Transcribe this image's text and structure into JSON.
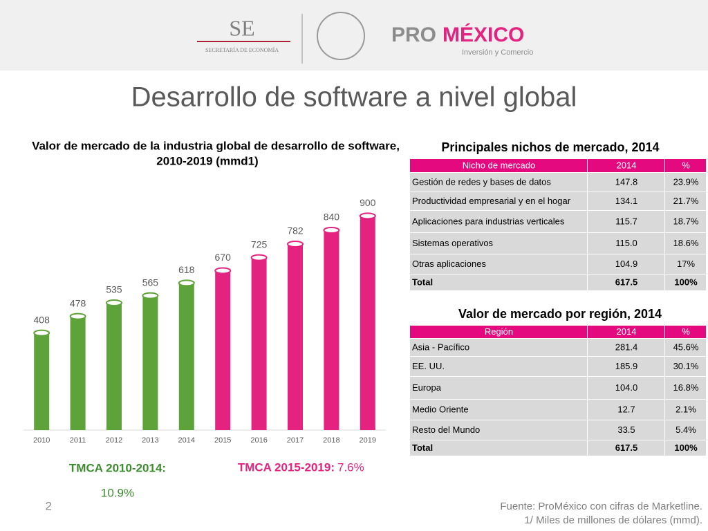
{
  "header": {
    "se": "SE",
    "se_sub": "SECRETARÍA DE ECONOMÍA",
    "pro": "PRO",
    "mexico": "MÉXICO",
    "pro_sub": "Inversión y Comercio"
  },
  "title": "Desarrollo de software a nivel global",
  "chart_data": {
    "type": "bar",
    "title": [
      "Valor de mercado de la industria global de desarrollo de software,",
      "2010-2019 (mmd1)"
    ],
    "categories": [
      "2010",
      "2011",
      "2012",
      "2013",
      "2014",
      "2015",
      "2016",
      "2017",
      "2018",
      "2019"
    ],
    "values": [
      408,
      478,
      535,
      565,
      618,
      670,
      725,
      782,
      840,
      900
    ],
    "colors": [
      "#5ea33a",
      "#5ea33a",
      "#5ea33a",
      "#5ea33a",
      "#5ea33a",
      "#e3237f",
      "#e3237f",
      "#e3237f",
      "#e3237f",
      "#e3237f"
    ],
    "ylim": [
      0,
      1000
    ],
    "annotations": [
      {
        "label": "TMCA 2010-2014:",
        "value": "10.9%"
      },
      {
        "label": "TMCA 2015-2019:",
        "value": "7.6%"
      }
    ]
  },
  "table_nichos": {
    "title": "Principales nichos de mercado, 2014",
    "header": [
      "Nicho de mercado",
      "2014",
      "%"
    ],
    "rows": [
      [
        "Gestión de redes y bases de datos",
        "147.8",
        "23.9%"
      ],
      [
        "Productividad empresarial y en el hogar",
        "134.1",
        "21.7%"
      ],
      [
        "Aplicaciones para industrias verticales",
        "115.7",
        "18.7%"
      ],
      [
        "Sistemas operativos",
        "115.0",
        "18.6%"
      ],
      [
        "Otras aplicaciones",
        "104.9",
        "17%"
      ],
      [
        "Total",
        "617.5",
        "100%"
      ]
    ]
  },
  "table_region": {
    "title": "Valor de mercado por región, 2014",
    "header": [
      "Región",
      "2014",
      "%"
    ],
    "rows": [
      [
        "Asia - Pacífico",
        "281.4",
        "45.6%"
      ],
      [
        "EE. UU.",
        "185.9",
        "30.1%"
      ],
      [
        "Europa",
        "104.0",
        "16.8%"
      ],
      [
        "Medio Oriente",
        "12.7",
        "2.1%"
      ],
      [
        "Resto del Mundo",
        "33.5",
        "5.4%"
      ],
      [
        "Total",
        "617.5",
        "100%"
      ]
    ]
  },
  "footer": {
    "page": "2",
    "source": "Fuente: ProMéxico con cifras de Marketline.",
    "note": "1/ Miles de millones de dólares (mmd)."
  }
}
